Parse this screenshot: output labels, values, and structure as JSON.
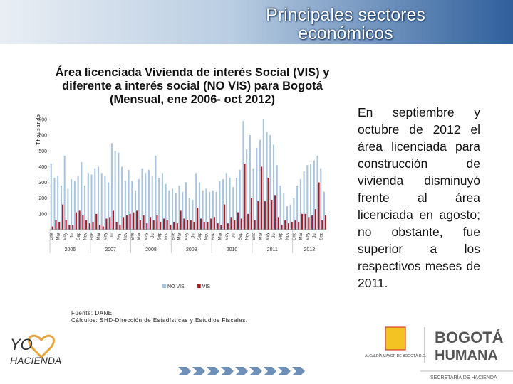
{
  "header": {
    "title": "Principales sectores económicos"
  },
  "chart_data": {
    "type": "bar",
    "title": "Área licenciada Vivienda de interés Social (VIS) y diferente a interés social (NO VIS) para Bogotá (Mensual, ene 2006- oct 2012)",
    "ylabel": "Thousands",
    "categories": [
      "Ene",
      null,
      "Mar",
      null,
      "May",
      null,
      "Jul",
      null,
      "Sep",
      null,
      "Nov",
      null,
      "Ene",
      null,
      "Mar",
      null,
      "May",
      null,
      "Jul",
      null,
      "Sep",
      null,
      "Nov",
      null,
      "Ene",
      null,
      "Mar",
      null,
      "May",
      null,
      "Jul",
      null,
      "Sep",
      null,
      "Nov",
      null,
      "Ene",
      null,
      "Mar",
      null,
      "May",
      null,
      "Jul",
      null,
      "Sep",
      null,
      "Nov",
      null,
      "Ene",
      null,
      "Mar",
      null,
      "May",
      null,
      "Jul",
      null,
      "Sep",
      null,
      "Nov",
      null,
      "Ene",
      null,
      "Mar",
      null,
      "May",
      null,
      "Jul",
      null,
      "Sep",
      null,
      "Nov",
      null,
      "Ene",
      null,
      "Mar",
      null,
      "May",
      null,
      "Jul",
      null,
      "Sep",
      null
    ],
    "years": [
      "2006",
      "2007",
      "2008",
      "2009",
      "2010",
      "2011",
      "2012"
    ],
    "series": [
      {
        "name": "NO VIS",
        "color": "#a9c4de",
        "values": [
          420,
          330,
          340,
          280,
          470,
          260,
          320,
          310,
          340,
          430,
          280,
          360,
          350,
          390,
          400,
          360,
          340,
          300,
          550,
          500,
          490,
          400,
          310,
          380,
          310,
          250,
          320,
          390,
          360,
          380,
          340,
          470,
          330,
          360,
          290,
          250,
          260,
          230,
          280,
          240,
          300,
          200,
          190,
          360,
          300,
          250,
          260,
          240,
          250,
          240,
          310,
          320,
          360,
          330,
          270,
          330,
          380,
          690,
          510,
          600,
          390,
          520,
          570,
          700,
          620,
          600,
          540,
          410,
          280,
          230,
          150,
          160,
          200,
          280,
          320,
          370,
          410,
          420,
          440,
          470,
          390,
          240
        ]
      },
      {
        "name": "VIS",
        "color": "#b0171f",
        "values": [
          20,
          60,
          50,
          160,
          60,
          30,
          30,
          110,
          120,
          90,
          60,
          40,
          50,
          100,
          30,
          20,
          70,
          80,
          120,
          50,
          30,
          80,
          90,
          100,
          110,
          120,
          60,
          90,
          40,
          80,
          60,
          90,
          50,
          70,
          60,
          30,
          50,
          40,
          120,
          70,
          60,
          60,
          50,
          140,
          70,
          50,
          50,
          70,
          80,
          40,
          30,
          160,
          40,
          80,
          60,
          110,
          70,
          420,
          100,
          200,
          60,
          180,
          400,
          180,
          330,
          190,
          220,
          80,
          30,
          60,
          40,
          50,
          60,
          50,
          100,
          100,
          80,
          90,
          130,
          300,
          60,
          90
        ]
      }
    ],
    "ylim": [
      0,
      700
    ],
    "yticks": [
      {
        "value": 0,
        "label": "-"
      },
      100,
      200,
      300,
      400,
      500,
      600,
      700
    ],
    "source": [
      "Fuente: DANE.",
      "Cálculos: SHD-Dirección de Estadísticas y Estudios Fiscales."
    ]
  },
  "text": "En septiembre y octubre de 2012 el área licenciada para construcción de vivienda disminuyó frente al área licenciada en agosto; no obstante, fue superior a los respectivos meses de 2011.",
  "footer": {
    "logo_left": "YO",
    "logo_left_sub": "HACIENDA",
    "logo_center": "ALCALDÍA MAYOR DE BOGOTÁ D.C.",
    "logo_right": "BOGOTÁ",
    "logo_right_sub": "HUMANA",
    "department": "SECRETARÍA DE HACIENDA"
  }
}
